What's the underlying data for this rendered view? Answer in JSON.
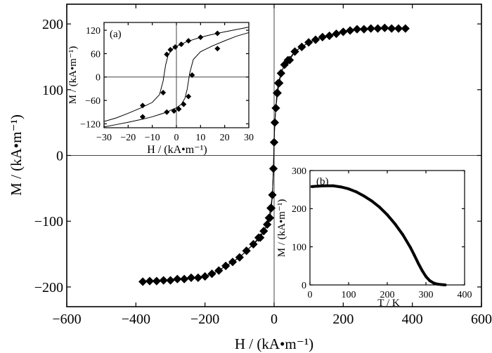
{
  "chart_data": [
    {
      "id": "main",
      "type": "scatter",
      "title": "",
      "xlabel": "H / (kA•m⁻¹)",
      "ylabel": "M / (kA•m⁻¹)",
      "xlim": [
        -600,
        600
      ],
      "ylim": [
        -230,
        230
      ],
      "xticks": [
        -600,
        -400,
        -200,
        0,
        200,
        400,
        600
      ],
      "xtick_labels": [
        "−600",
        "−400",
        "−200",
        "0",
        "200",
        "400",
        "600"
      ],
      "yticks": [
        -200,
        -100,
        0,
        100,
        200
      ],
      "ytick_labels": [
        "−200",
        "−100",
        "0",
        "100",
        "200"
      ],
      "grid": false,
      "marker": "diamond",
      "zero_lines": true,
      "series": [
        {
          "branch": "descending",
          "x": [
            380,
            360,
            340,
            320,
            300,
            280,
            260,
            240,
            220,
            200,
            180,
            160,
            140,
            120,
            100,
            80,
            60,
            40,
            30,
            20,
            15,
            10,
            5,
            2,
            0,
            -2,
            -5,
            -8,
            -12,
            -20,
            -30,
            -45,
            -60,
            -80,
            -100,
            -120,
            -140,
            -160,
            -180,
            -200,
            -220,
            -240,
            -260,
            -280,
            -300,
            -320,
            -340,
            -360,
            -380
          ],
          "y": [
            193,
            193,
            193,
            194,
            193,
            193,
            192,
            192,
            190,
            188,
            185,
            182,
            180,
            176,
            172,
            165,
            158,
            145,
            138,
            125,
            110,
            95,
            72,
            50,
            20,
            -20,
            -60,
            -80,
            -95,
            -105,
            -115,
            -125,
            -135,
            -145,
            -155,
            -162,
            -168,
            -175,
            -180,
            -184,
            -186,
            -186,
            -188,
            -188,
            -190,
            -190,
            -191,
            -191,
            -192
          ]
        },
        {
          "branch": "ascending",
          "x": [
            -380,
            -360,
            -340,
            -320,
            -300,
            -280,
            -260,
            -240,
            -220,
            -200,
            -180,
            -160,
            -140,
            -120,
            -100,
            -80,
            -60,
            -40,
            -30,
            -20,
            -15,
            -10,
            -5,
            -2,
            0,
            2,
            5,
            8,
            12,
            20,
            30,
            45,
            60,
            80,
            100,
            120,
            140,
            160,
            180,
            200,
            220,
            240,
            260,
            280,
            300,
            320,
            340,
            360,
            380
          ],
          "y": [
            -192,
            -191,
            -191,
            -190,
            -190,
            -188,
            -188,
            -186,
            -186,
            -184,
            -180,
            -175,
            -168,
            -162,
            -155,
            -145,
            -135,
            -125,
            -115,
            -105,
            -95,
            -80,
            -60,
            -20,
            20,
            50,
            72,
            95,
            110,
            125,
            138,
            145,
            158,
            165,
            172,
            176,
            180,
            182,
            185,
            188,
            190,
            192,
            192,
            193,
            193,
            194,
            193,
            193,
            193
          ]
        }
      ]
    },
    {
      "id": "inset-a",
      "type": "line",
      "panel_label": "(a)",
      "xlabel": "H / (kA•m⁻¹)",
      "ylabel": "M / (kA•m⁻¹)",
      "xlim": [
        -30,
        30
      ],
      "ylim": [
        -130,
        140
      ],
      "xticks": [
        -30,
        -20,
        -10,
        0,
        10,
        20,
        30
      ],
      "xtick_labels": [
        "−30",
        "−20",
        "−10",
        "0",
        "10",
        "20",
        "30"
      ],
      "yticks": [
        -120,
        -60,
        0,
        60,
        120
      ],
      "ytick_labels": [
        "−120",
        "−60",
        "0",
        "60",
        "120"
      ],
      "grid": false,
      "zero_lines": true,
      "series": [
        {
          "branch": "descending",
          "x": [
            30,
            25,
            20,
            17,
            14,
            10,
            7,
            4,
            2,
            0,
            -2,
            -3.5,
            -4.5,
            -5.5,
            -7,
            -10,
            -15,
            -20,
            -25,
            -30
          ],
          "y": [
            128,
            122,
            116,
            112,
            108,
            102,
            96,
            90,
            84,
            79,
            70,
            55,
            30,
            -10,
            -45,
            -65,
            -80,
            -93,
            -105,
            -114
          ],
          "markers_x": [
            17,
            10,
            5,
            2,
            -0.5,
            -2.5,
            -4,
            -5.5,
            -14
          ],
          "markers_y": [
            112,
            102,
            93,
            84,
            77,
            70,
            58,
            -40,
            -73
          ]
        },
        {
          "branch": "ascending",
          "x": [
            -30,
            -25,
            -20,
            -17,
            -14,
            -10,
            -7,
            -4,
            -2,
            0,
            2,
            3.5,
            4.5,
            5.5,
            7,
            10,
            15,
            20,
            25,
            30
          ],
          "y": [
            -128,
            -122,
            -116,
            -112,
            -108,
            -102,
            -96,
            -90,
            -84,
            -79,
            -70,
            -55,
            -30,
            10,
            45,
            65,
            80,
            93,
            105,
            114
          ],
          "markers_x": [
            -14,
            -4,
            -1,
            1,
            3,
            5,
            6.5,
            17
          ],
          "markers_y": [
            -102,
            -90,
            -87,
            -82,
            -70,
            -50,
            5,
            73
          ]
        }
      ]
    },
    {
      "id": "inset-b",
      "type": "scatter",
      "panel_label": "(b)",
      "xlabel": "T / K",
      "ylabel": "M / (kA•m⁻¹)",
      "xlim": [
        0,
        400
      ],
      "ylim": [
        0,
        300
      ],
      "xticks": [
        0,
        100,
        200,
        300,
        400
      ],
      "xtick_labels": [
        "0",
        "100",
        "200",
        "300",
        "400"
      ],
      "yticks": [
        0,
        100,
        200,
        300
      ],
      "ytick_labels": [
        "0",
        "100",
        "200",
        "300"
      ],
      "grid": false,
      "x": [
        5,
        20,
        40,
        60,
        80,
        100,
        120,
        140,
        160,
        180,
        200,
        220,
        240,
        260,
        270,
        280,
        290,
        300,
        310,
        320,
        330,
        340,
        350
      ],
      "y": [
        258,
        259,
        260,
        260,
        257,
        252,
        244,
        233,
        220,
        204,
        184,
        160,
        132,
        98,
        78,
        57,
        38,
        22,
        11,
        5,
        2,
        1,
        0
      ]
    }
  ]
}
